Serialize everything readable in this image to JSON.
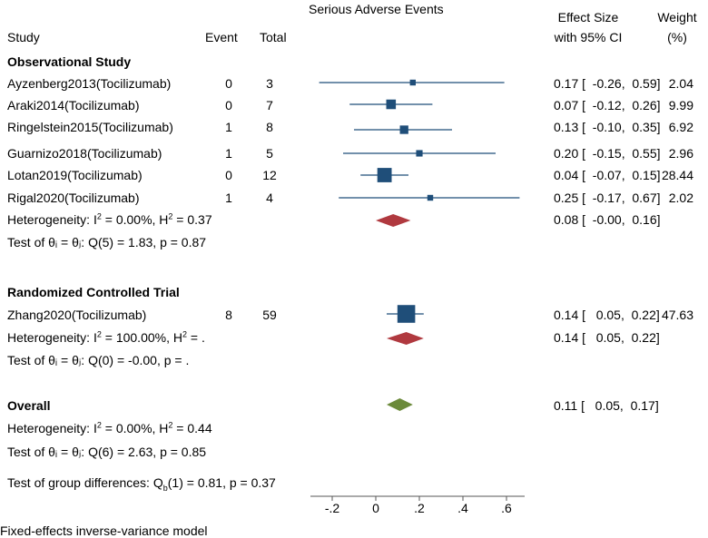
{
  "header": {
    "outcome_title": "Serious Adverse Events",
    "study_label": "Study",
    "event_label": "Event",
    "total_label": "Total",
    "effect_line1": "Effect Size",
    "effect_line2": "with 95% CI",
    "weight_line1": "Weight",
    "weight_line2": "(%)"
  },
  "groups": {
    "observational": {
      "title": "Observational Study",
      "het_prefix": "Heterogeneity: I",
      "het_mid": " = 0.00%, H",
      "het_end": " = 0.37",
      "test_text": "Test of θᵢ = θⱼ: Q(5) = 1.83, p = 0.87",
      "pooled_ci": "0.08 [  -0.00,  0.16]"
    },
    "rct": {
      "title": "Randomized Controlled Trial",
      "het_prefix": "Heterogeneity: I",
      "het_mid": " = 100.00%, H",
      "het_end": " = .",
      "test_text": "Test of θᵢ = θⱼ: Q(0) = -0.00, p = .",
      "pooled_ci": "0.14 [   0.05,  0.22]"
    },
    "overall": {
      "title": "Overall",
      "het_prefix": "Heterogeneity: I",
      "het_mid": " = 0.00%, H",
      "het_end": " = 0.44",
      "test_text": "Test of θᵢ = θⱼ: Q(6) = 2.63, p = 0.85",
      "pooled_ci": "0.11 [   0.05,  0.17]"
    }
  },
  "group_diff": {
    "prefix": "Test of group differences: Q",
    "sub": "b",
    "suffix": "(1) = 0.81, p = 0.37"
  },
  "footnote": "Fixed-effects inverse-variance model",
  "chart_data": {
    "type": "forest",
    "title": "Serious Adverse Events",
    "xlabel": "",
    "xlim": [
      -0.3,
      0.66
    ],
    "ticks": [
      -0.2,
      0,
      0.2,
      0.4,
      0.6
    ],
    "tick_labels": [
      "-.2",
      "0",
      ".2",
      ".4",
      ".6"
    ],
    "studies": [
      {
        "name": "Ayzenberg2013(Tocilizumab)",
        "group": "Observational Study",
        "event": "0",
        "total": "3",
        "es": 0.17,
        "lo": -0.26,
        "hi": 0.59,
        "ci_text": "0.17 [  -0.26,  0.59]",
        "weight": 2.04,
        "weight_text": "2.04"
      },
      {
        "name": "Araki2014(Tocilizumab)",
        "group": "Observational Study",
        "event": "0",
        "total": "7",
        "es": 0.07,
        "lo": -0.12,
        "hi": 0.26,
        "ci_text": "0.07 [  -0.12,  0.26]",
        "weight": 9.99,
        "weight_text": "9.99"
      },
      {
        "name": "Ringelstein2015(Tocilizumab)",
        "group": "Observational Study",
        "event": "1",
        "total": "8",
        "es": 0.13,
        "lo": -0.1,
        "hi": 0.35,
        "ci_text": "0.13 [  -0.10,  0.35]",
        "weight": 6.92,
        "weight_text": "6.92"
      },
      {
        "name": "Guarnizo2018(Tocilizumab)",
        "group": "Observational Study",
        "event": "1",
        "total": "5",
        "es": 0.2,
        "lo": -0.15,
        "hi": 0.55,
        "ci_text": "0.20 [  -0.15,  0.55]",
        "weight": 2.96,
        "weight_text": "2.96"
      },
      {
        "name": "Lotan2019(Tocilizumab)",
        "group": "Observational Study",
        "event": "0",
        "total": "12",
        "es": 0.04,
        "lo": -0.07,
        "hi": 0.15,
        "ci_text": "0.04 [  -0.07,  0.15]",
        "weight": 28.44,
        "weight_text": "28.44"
      },
      {
        "name": "Rigal2020(Tocilizumab)",
        "group": "Observational Study",
        "event": "1",
        "total": "4",
        "es": 0.25,
        "lo": -0.17,
        "hi": 0.67,
        "ci_text": "0.25 [  -0.17,  0.67]",
        "weight": 2.02,
        "weight_text": "2.02"
      },
      {
        "name": "Zhang2020(Tocilizumab)",
        "group": "Randomized Controlled Trial",
        "event": "8",
        "total": "59",
        "es": 0.14,
        "lo": 0.05,
        "hi": 0.22,
        "ci_text": "0.14 [   0.05,  0.22]",
        "weight": 47.63,
        "weight_text": "47.63"
      }
    ],
    "pooled": [
      {
        "name": "Observational Study",
        "es": 0.08,
        "lo": -0.0,
        "hi": 0.16,
        "color": "#b0393f"
      },
      {
        "name": "Randomized Controlled Trial",
        "es": 0.14,
        "lo": 0.05,
        "hi": 0.22,
        "color": "#b0393f"
      },
      {
        "name": "Overall",
        "es": 0.11,
        "lo": 0.05,
        "hi": 0.17,
        "color": "#6b8a3a"
      }
    ],
    "marker_color": "#1f4e79"
  }
}
